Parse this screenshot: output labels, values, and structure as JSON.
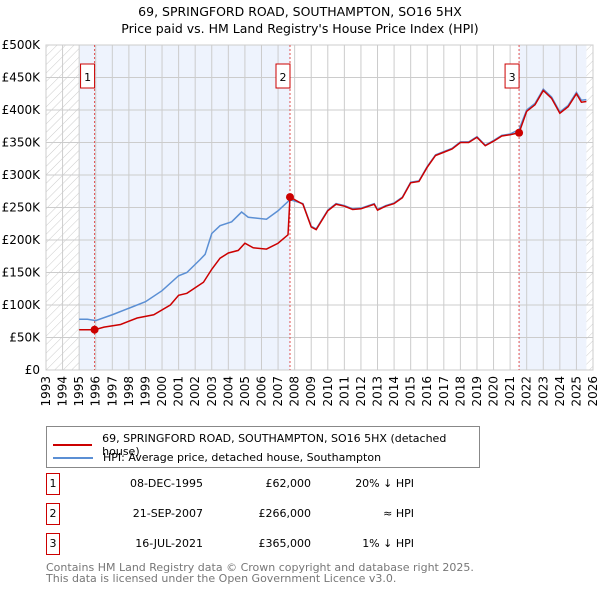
{
  "title": "69, SPRINGFORD ROAD, SOUTHAMPTON, SO16 5HX",
  "subtitle": "Price paid vs. HM Land Registry's House Price Index (HPI)",
  "chart_data": {
    "type": "line",
    "xlim": [
      1993,
      2026
    ],
    "ylim": [
      0,
      500000
    ],
    "yticks": [
      {
        "v": 0,
        "label": "£0"
      },
      {
        "v": 50000,
        "label": "£50K"
      },
      {
        "v": 100000,
        "label": "£100K"
      },
      {
        "v": 150000,
        "label": "£150K"
      },
      {
        "v": 200000,
        "label": "£200K"
      },
      {
        "v": 250000,
        "label": "£250K"
      },
      {
        "v": 300000,
        "label": "£300K"
      },
      {
        "v": 350000,
        "label": "£350K"
      },
      {
        "v": 400000,
        "label": "£400K"
      },
      {
        "v": 450000,
        "label": "£450K"
      },
      {
        "v": 500000,
        "label": "£500K"
      }
    ],
    "xticks": [
      "1993",
      "1994",
      "1995",
      "1996",
      "1997",
      "1998",
      "1999",
      "2000",
      "2001",
      "2002",
      "2003",
      "2004",
      "2005",
      "2006",
      "2007",
      "2008",
      "2009",
      "2010",
      "2011",
      "2012",
      "2013",
      "2014",
      "2015",
      "2016",
      "2017",
      "2018",
      "2019",
      "2020",
      "2021",
      "2022",
      "2023",
      "2024",
      "2025",
      "2026"
    ],
    "series": [
      {
        "name": "69, SPRINGFORD ROAD, SOUTHAMPTON, SO16 5HX (detached house)",
        "color": "#cc0000",
        "x": [
          1995.0,
          1995.5,
          1995.93,
          1996.5,
          1997.5,
          1998.5,
          1999.5,
          2000.5,
          2001,
          2001.5,
          2002.5,
          2003,
          2003.5,
          2004,
          2004.6,
          2005,
          2005.5,
          2006.3,
          2007,
          2007.6,
          2007.72,
          2008.5,
          2009,
          2009.3,
          2010,
          2010.5,
          2011,
          2011.5,
          2012,
          2012.8,
          2013,
          2013.5,
          2014,
          2014.5,
          2015,
          2015.5,
          2016,
          2016.5,
          2017,
          2017.5,
          2018,
          2018.5,
          2019,
          2019.5,
          2020,
          2020.5,
          2021,
          2021.54,
          2022,
          2022.5,
          2023,
          2023.5,
          2024,
          2024.5,
          2025,
          2025.3,
          2025.6
        ],
        "y": [
          62000,
          62000,
          62000,
          66000,
          70000,
          80000,
          85000,
          100000,
          115000,
          118000,
          135000,
          155000,
          172000,
          180000,
          184000,
          195000,
          188000,
          186000,
          195000,
          208000,
          266000,
          255000,
          220000,
          216000,
          245000,
          255000,
          252000,
          247000,
          248000,
          255000,
          246000,
          252000,
          256000,
          265000,
          288000,
          290000,
          312000,
          330000,
          335000,
          340000,
          350000,
          350000,
          358000,
          345000,
          352000,
          360000,
          362000,
          365000,
          398000,
          408000,
          430000,
          418000,
          395000,
          405000,
          425000,
          412000,
          413000
        ]
      },
      {
        "name": "HPI: Average price, detached house, Southampton",
        "color": "#5b8fd4",
        "x": [
          1995.0,
          1995.5,
          1996,
          1997,
          1998,
          1999,
          2000,
          2001,
          2001.5,
          2002.3,
          2002.6,
          2003,
          2003.5,
          2004.2,
          2004.8,
          2005.2,
          2006.3,
          2007,
          2007.72,
          2008.5,
          2009,
          2009.3,
          2010,
          2010.5,
          2011,
          2011.5,
          2012,
          2012.8,
          2013,
          2013.5,
          2014,
          2014.5,
          2015,
          2015.5,
          2016,
          2016.5,
          2017,
          2017.5,
          2018,
          2018.5,
          2019,
          2019.5,
          2020,
          2020.5,
          2021,
          2021.54,
          2022,
          2022.5,
          2023,
          2023.5,
          2024,
          2024.5,
          2025,
          2025.3,
          2025.6
        ],
        "y": [
          78000,
          78000,
          76000,
          85000,
          95000,
          105000,
          122000,
          145000,
          150000,
          170000,
          178000,
          210000,
          222000,
          228000,
          243000,
          235000,
          232000,
          245000,
          262000,
          256000,
          221000,
          217000,
          246000,
          256000,
          253000,
          248000,
          249000,
          256000,
          247000,
          253000,
          257000,
          266000,
          289000,
          291000,
          313000,
          331000,
          336000,
          341000,
          351000,
          351000,
          359000,
          346000,
          353000,
          361000,
          363000,
          370000,
          400000,
          410000,
          432000,
          420000,
          397000,
          407000,
          427000,
          415000,
          416000
        ]
      }
    ],
    "sales": [
      {
        "n": "1",
        "x": 1995.93,
        "y": 62000,
        "date": "08-DEC-1995",
        "price": "£62,000",
        "hpi": "20% ↓ HPI"
      },
      {
        "n": "2",
        "x": 2007.72,
        "y": 266000,
        "date": "21-SEP-2007",
        "price": "£266,000",
        "hpi": "≈ HPI"
      },
      {
        "n": "3",
        "x": 2021.54,
        "y": 365000,
        "date": "16-JUL-2021",
        "price": "£365,000",
        "hpi": "1% ↓ HPI"
      }
    ],
    "shaded": [
      [
        1995.0,
        2007.72
      ],
      [
        2021.54,
        2025.6
      ]
    ],
    "hatched": [
      [
        1993,
        1995.0
      ],
      [
        2025.6,
        2026
      ]
    ]
  },
  "footer": {
    "line1": "Contains HM Land Registry data © Crown copyright and database right 2025.",
    "line2": "This data is licensed under the Open Government Licence v3.0."
  }
}
